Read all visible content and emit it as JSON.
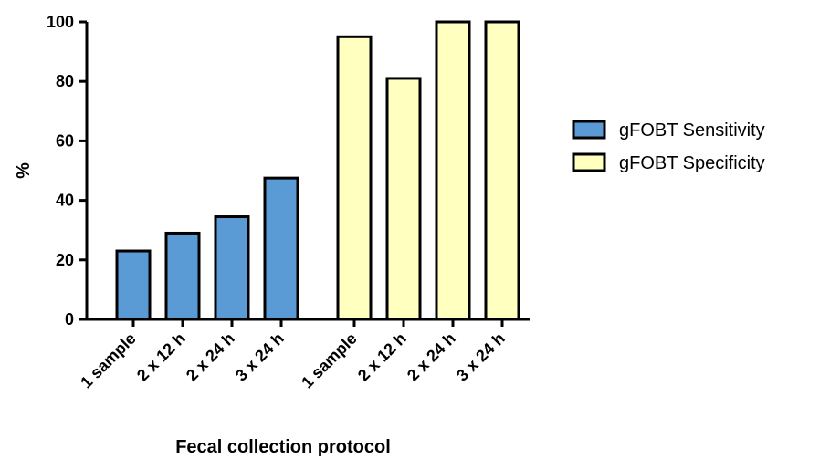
{
  "chart_data": {
    "type": "bar",
    "xlabel": "Fecal collection protocol",
    "ylabel": "%",
    "ylim": [
      0,
      100
    ],
    "yticks": [
      0,
      20,
      40,
      60,
      80,
      100
    ],
    "grid": false,
    "legend_position": "right",
    "groups": [
      {
        "name": "gFOBT Sensitivity",
        "color": "#5B9BD5",
        "categories": [
          "1 sample",
          "2 x 12 h",
          "2 x 24 h",
          "3 x 24 h"
        ],
        "values": [
          23,
          29,
          34.5,
          47.5
        ]
      },
      {
        "name": "gFOBT Specificity",
        "color": "#FFFFC0",
        "categories": [
          "1 sample",
          "2 x 12 h",
          "2 x 24 h",
          "3 x 24 h"
        ],
        "values": [
          95,
          81,
          100,
          100
        ]
      }
    ]
  }
}
